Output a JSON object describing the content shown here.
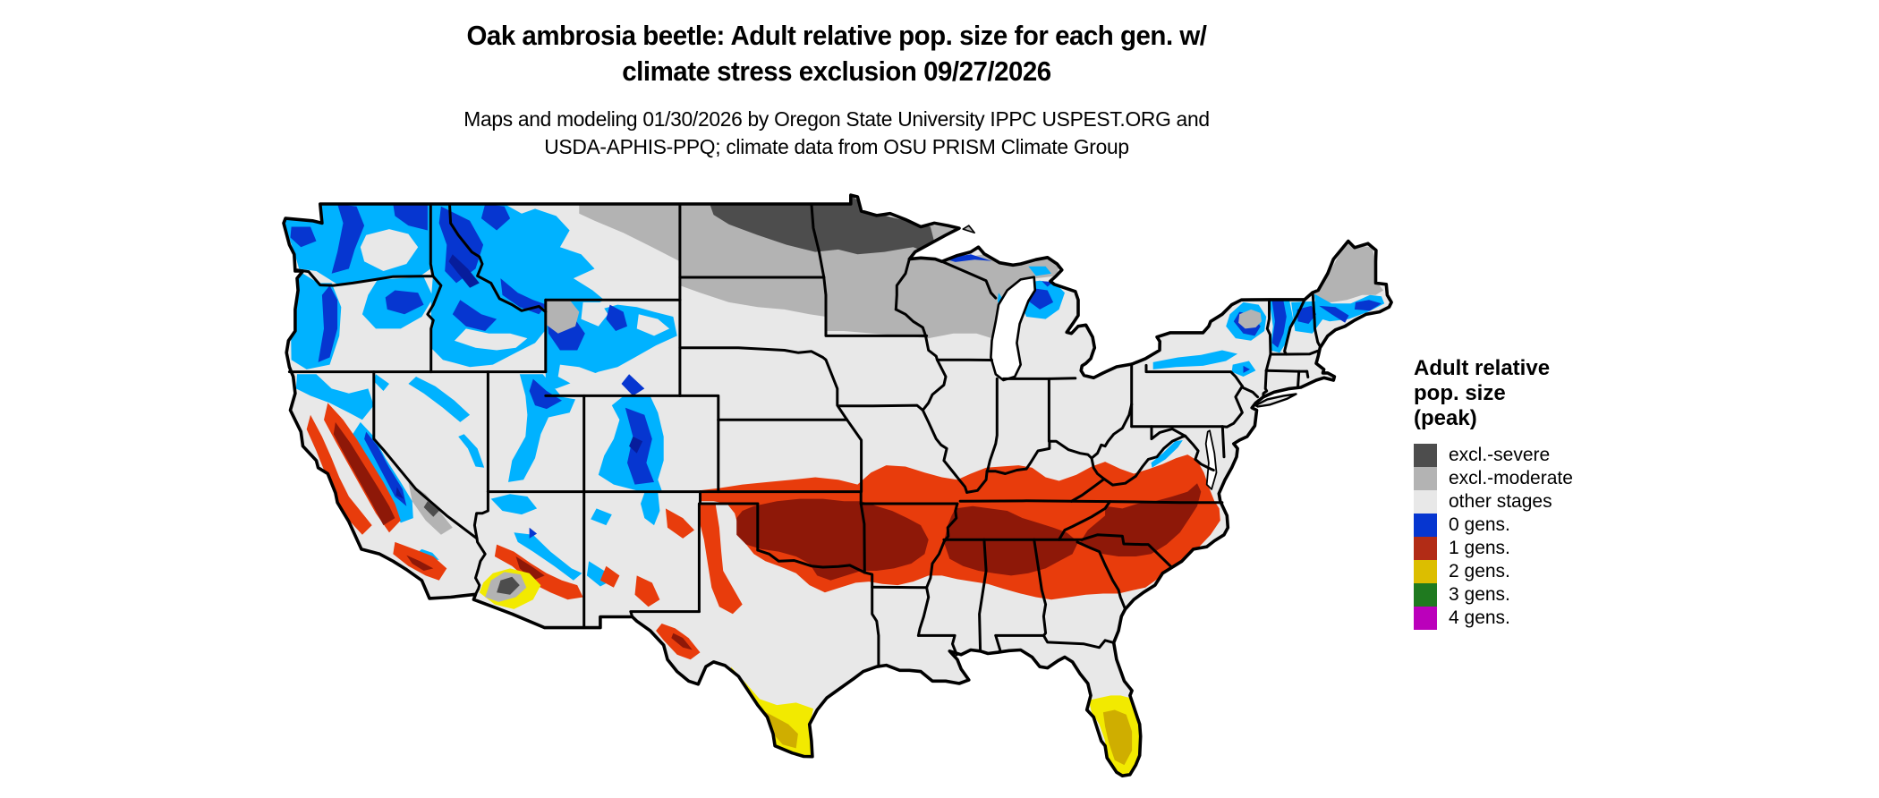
{
  "title": {
    "line1": "Oak ambrosia beetle: Adult relative pop. size for each gen. w/",
    "line2": "climate stress exclusion 09/27/2026"
  },
  "subtitle": {
    "line1": "Maps and modeling 01/30/2026 by Oregon State University IPPC USPEST.ORG and",
    "line2": "USDA-APHIS-PPQ; climate data from OSU PRISM Climate Group"
  },
  "legend": {
    "title_lines": [
      "Adult relative",
      "pop. size",
      "(peak)"
    ],
    "items": [
      {
        "label": "excl.-severe",
        "color": "#4d4d4d"
      },
      {
        "label": "excl.-moderate",
        "color": "#b3b3b3"
      },
      {
        "label": "other stages",
        "color": "#e8e8e8"
      },
      {
        "label": "0 gens.",
        "color": "#0636d0"
      },
      {
        "label": "1 gens.",
        "color": "#b22c16"
      },
      {
        "label": "2 gens.",
        "color": "#dcbe00"
      },
      {
        "label": "3 gens.",
        "color": "#1f7a1f"
      },
      {
        "label": "4 gens.",
        "color": "#bb00bb"
      }
    ]
  },
  "map": {
    "region_label": "Continental United States",
    "date_shown": "09/27/2026"
  },
  "colors": {
    "background": "#ffffff",
    "border": "#000000",
    "excl_severe": "#4d4d4d",
    "excl_moderate": "#b3b3b3",
    "other_stages": "#e8e8e8",
    "gens0": "#0636d0",
    "gens0_light": "#00b2ff",
    "gens0_dark": "#071d9c",
    "gens1": "#b22c16",
    "gens1_bright": "#e83c0c",
    "gens1_dark": "#8e1808",
    "gens2": "#dcbe00",
    "gens2_bright": "#f2ea00",
    "gens2_dark": "#cfae00",
    "gens3": "#1f7a1f",
    "gens4": "#bb00bb",
    "water": "#ffffff"
  }
}
